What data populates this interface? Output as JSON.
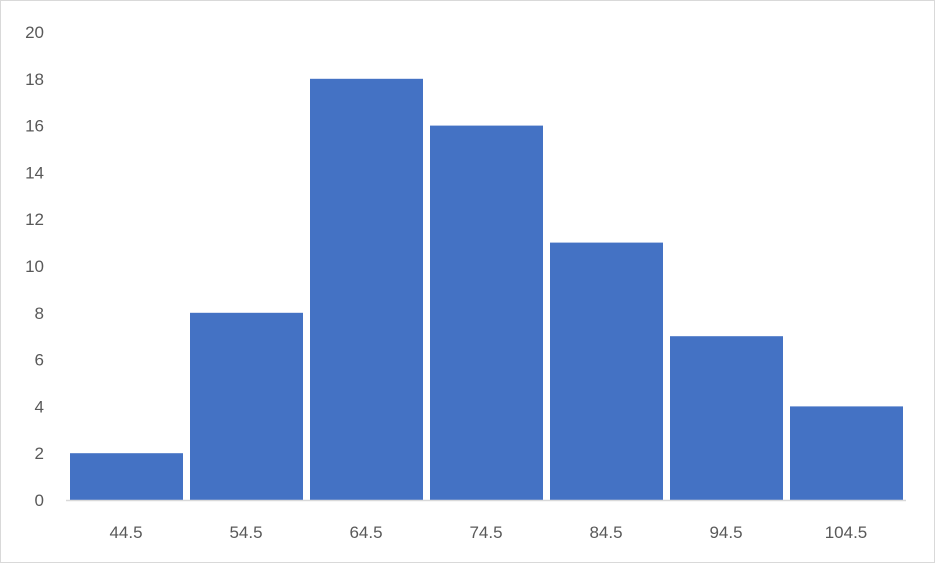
{
  "chart_data": {
    "type": "bar",
    "title": "",
    "xlabel": "",
    "ylabel": "",
    "categories": [
      "44.5",
      "54.5",
      "64.5",
      "74.5",
      "84.5",
      "94.5",
      "104.5"
    ],
    "values": [
      2,
      8,
      18,
      16,
      11,
      7,
      4
    ],
    "ylim": [
      0,
      20
    ],
    "yticks": [
      "0",
      "2",
      "4",
      "6",
      "8",
      "10",
      "12",
      "14",
      "16",
      "18",
      "20"
    ],
    "grid": false,
    "legend": "none",
    "colors": {
      "bar": "#4472C4",
      "axis": "#d9d9d9",
      "tick_text": "#595959"
    }
  }
}
